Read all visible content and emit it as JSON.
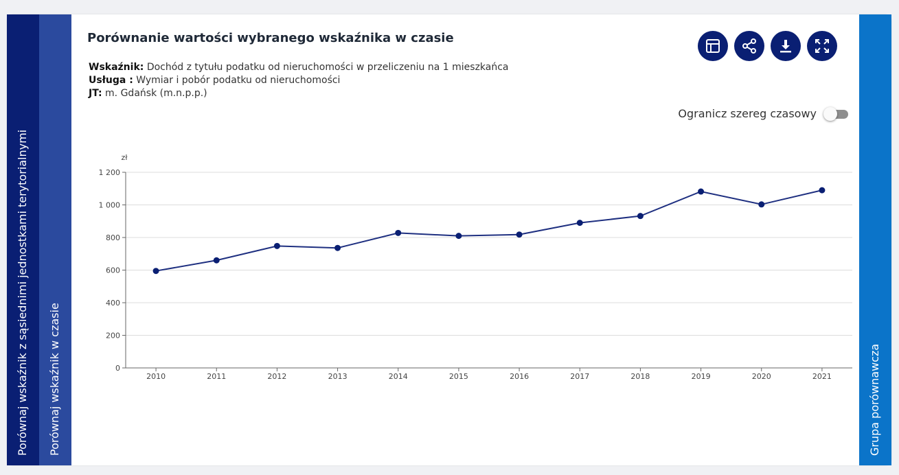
{
  "tabs": {
    "left_1": "Porównaj wskaźnik z sąsiednimi jednostkami terytorialnymi",
    "left_2": "Porównaj wskaźnik w czasie",
    "right": "Grupa porównawcza"
  },
  "header": {
    "title": "Porównanie wartości wybranego wskaźnika w czasie",
    "indicator_label": "Wskaźnik:",
    "indicator_value": "Dochód z tytułu podatku od nieruchomości w przeliczeniu na 1 mieszkańca",
    "service_label": "Usługa :",
    "service_value": "Wymiar i pobór podatku od nieruchomości",
    "unit_label": "JT:",
    "unit_value": "m. Gdańsk (m.n.p.p.)"
  },
  "toolbar": {
    "icons": [
      "table-icon",
      "share-icon",
      "download-icon",
      "fullscreen-icon"
    ]
  },
  "toggle": {
    "label": "Ogranicz szereg czasowy",
    "checked": false
  },
  "chart_data": {
    "type": "line",
    "title": "",
    "xlabel": "",
    "ylabel": "zł",
    "x": [
      "2010",
      "2011",
      "2012",
      "2013",
      "2014",
      "2015",
      "2016",
      "2017",
      "2018",
      "2019",
      "2020",
      "2021"
    ],
    "series": [
      {
        "values": [
          595,
          660,
          748,
          736,
          828,
          810,
          818,
          890,
          932,
          1082,
          1003,
          1090
        ]
      }
    ],
    "y_ticks": [
      "0",
      "200",
      "400",
      "600",
      "800",
      "1 000",
      "1 200"
    ],
    "ylim": [
      0,
      1200
    ],
    "grid": true,
    "legend": "none",
    "color": "#1e2f80"
  }
}
